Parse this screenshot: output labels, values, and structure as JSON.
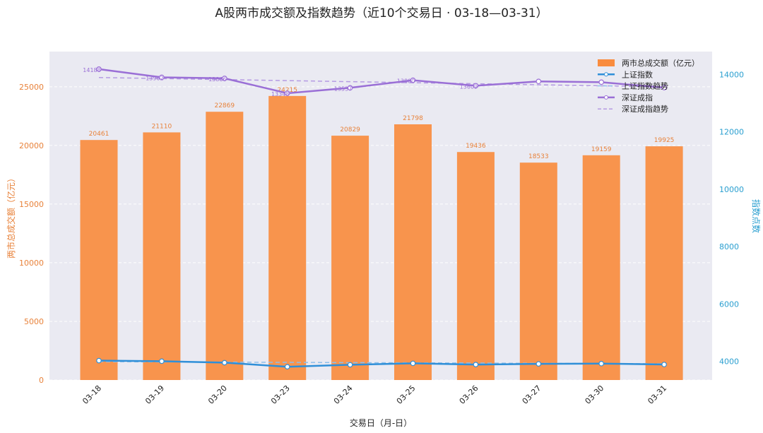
{
  "chart_data": {
    "type": "bar",
    "title": "A股两市成交额及指数趋势（近10个交易日 · 03-18—03-31）",
    "xlabel": "交易日（月-日）",
    "ylabel_left": "两市总成交额（亿元）",
    "ylabel_right": "指数点数",
    "categories": [
      "03-18",
      "03-19",
      "03-20",
      "03-23",
      "03-24",
      "03-25",
      "03-26",
      "03-27",
      "03-30",
      "03-31"
    ],
    "ylim_left": [
      0,
      28000
    ],
    "ylim_right": [
      3350,
      14800
    ],
    "yticks_left": [
      "0",
      "5000",
      "10000",
      "15000",
      "20000",
      "25000"
    ],
    "yticks_left_values": [
      0,
      5000,
      10000,
      15000,
      20000,
      25000
    ],
    "yticks_right": [
      "4000",
      "6000",
      "8000",
      "10000",
      "12000",
      "14000"
    ],
    "yticks_right_values": [
      4000,
      6000,
      8000,
      10000,
      12000,
      14000
    ],
    "grid": true,
    "legend_position": "top-right",
    "series": [
      {
        "name": "两市总成交额（亿元）",
        "kind": "bar",
        "axis": "left",
        "color": "#f98c3f",
        "values": [
          20461,
          21110,
          22869,
          24215,
          20829,
          21798,
          19436,
          18533,
          19159,
          19925
        ],
        "labels": [
          "20461",
          "21110",
          "22869",
          "24215",
          "20829",
          "21798",
          "19436",
          "18533",
          "19159",
          "19925"
        ]
      },
      {
        "name": "上证指数",
        "kind": "line",
        "axis": "right",
        "color": "#2f8fd8",
        "values": [
          4027,
          4006,
          3955,
          3813,
          3882,
          3932,
          3890,
          3913,
          3923,
          3892
        ]
      },
      {
        "name": "上证指数趋势",
        "kind": "trend",
        "axis": "right",
        "color": "#8fbfea",
        "values": [
          3990,
          3982,
          3974,
          3965,
          3957,
          3949,
          3941,
          3932,
          3924,
          3916
        ]
      },
      {
        "name": "深证成指",
        "kind": "line",
        "axis": "right",
        "color": "#9a6fd6",
        "values": [
          14188,
          13902,
          13866,
          13348,
          13537,
          13800,
          13609,
          13760,
          13733,
          13542
        ],
        "labels": [
          "14188",
          "13902",
          "13866",
          "13348",
          "13537",
          "13800",
          "13609",
          "",
          "",
          ""
        ]
      },
      {
        "name": "深证成指趋势",
        "kind": "trend",
        "axis": "right",
        "color": "#b59be3",
        "values": [
          13895,
          13859,
          13823,
          13787,
          13751,
          13715,
          13679,
          13643,
          13607,
          13571
        ]
      }
    ]
  }
}
